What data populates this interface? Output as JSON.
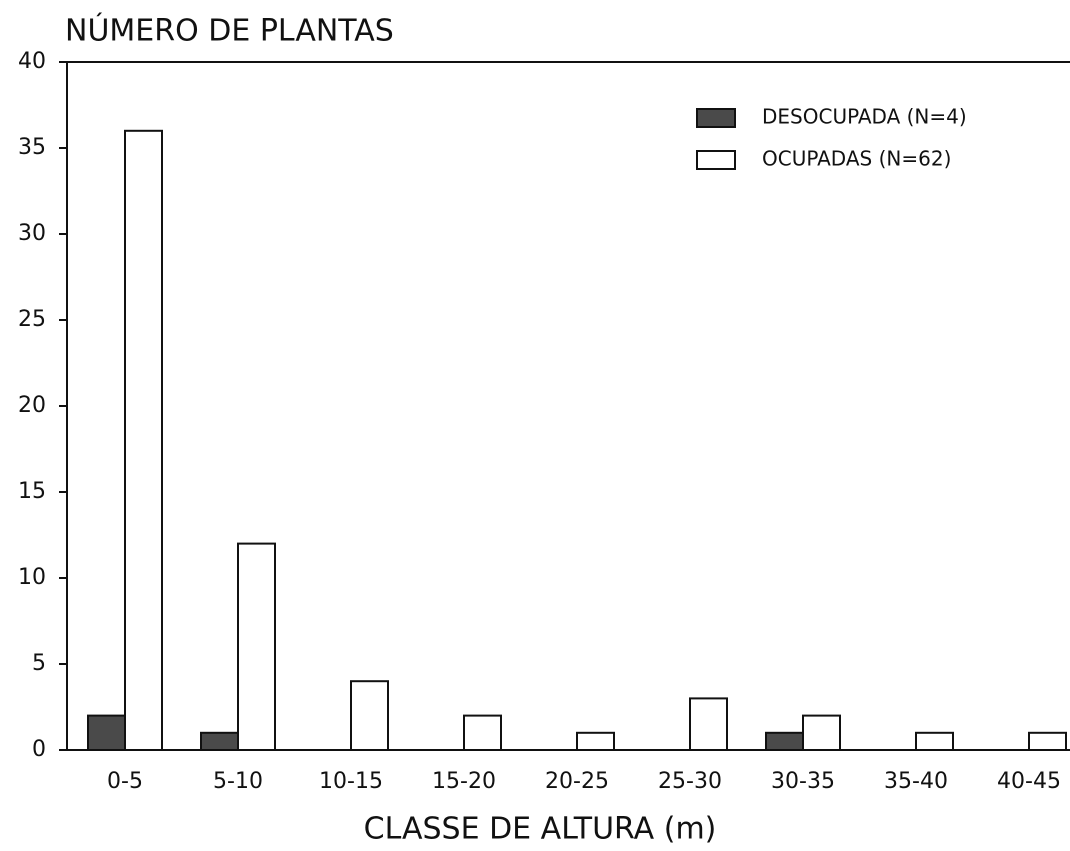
{
  "chart_data": {
    "type": "bar",
    "title": "NÚMERO DE PLANTAS",
    "x_label": "CLASSE DE ALTURA (m)",
    "categories": [
      "0-5",
      "5-10",
      "10-15",
      "15-20",
      "20-25",
      "25-30",
      "30-35",
      "35-40",
      "40-45"
    ],
    "series": [
      {
        "name": "DESOCUPADA (N=4)",
        "color": "#4a4a4a",
        "values": [
          2,
          1,
          0,
          0,
          0,
          0,
          1,
          0,
          0
        ]
      },
      {
        "name": "OCUPADAS (N=62)",
        "color": "#ffffff",
        "values": [
          36,
          12,
          4,
          2,
          1,
          3,
          2,
          1,
          1
        ]
      }
    ],
    "ylim": [
      0,
      40
    ],
    "yticks": [
      0,
      5,
      10,
      15,
      20,
      25,
      30,
      35,
      40
    ],
    "legend": "upper right"
  }
}
